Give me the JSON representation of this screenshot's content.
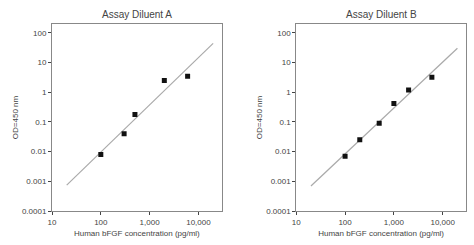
{
  "chart_data": [
    {
      "type": "scatter",
      "title": "Assay Diluent A",
      "xlabel": "Human bFGF concentration (pg/ml)",
      "ylabel": "OD=450 nm",
      "log": true,
      "grid": false,
      "xlim": [
        10,
        30000
      ],
      "xticks": [
        10,
        100,
        {
          "value": 1000,
          "label": "1,000"
        },
        {
          "value": 10000,
          "label": "10,000"
        }
      ],
      "ylim": [
        0.0001,
        200
      ],
      "yticks": [
        0.0001,
        0.001,
        0.01,
        0.1,
        1,
        10,
        100
      ],
      "series": [
        {
          "type": "line",
          "color": "#aaaaaa",
          "line_style": "solid",
          "x": [
            20,
            20000
          ],
          "values": [
            0.000745,
            44.62
          ]
        },
        {
          "type": "scatter",
          "color": "#111111",
          "marker": "square",
          "x": [
            100,
            300,
            500,
            2000,
            6000
          ],
          "values": [
            0.008,
            0.04,
            0.18,
            2.5,
            3.5
          ]
        }
      ]
    },
    {
      "type": "scatter",
      "title": "Assay Diluent B",
      "xlabel": "Human bFGF concentration (pg/ml)",
      "ylabel": "OD=450 nm",
      "log": true,
      "grid": false,
      "xlim": [
        10,
        30000
      ],
      "xticks": [
        10,
        100,
        {
          "value": 1000,
          "label": "1,000"
        },
        {
          "value": 10000,
          "label": "10,000"
        }
      ],
      "ylim": [
        0.0001,
        200
      ],
      "yticks": [
        0.0001,
        0.001,
        0.01,
        0.1,
        1,
        10,
        100
      ],
      "series": [
        {
          "type": "line",
          "color": "#aaaaaa",
          "line_style": "solid",
          "x": [
            20,
            20000
          ],
          "values": [
            0.000697,
            30.51
          ]
        },
        {
          "type": "scatter",
          "color": "#111111",
          "marker": "square",
          "x": [
            100,
            200,
            500,
            1000,
            2000,
            6000
          ],
          "values": [
            0.007,
            0.025,
            0.09,
            0.42,
            1.2,
            3.2
          ]
        }
      ]
    }
  ]
}
